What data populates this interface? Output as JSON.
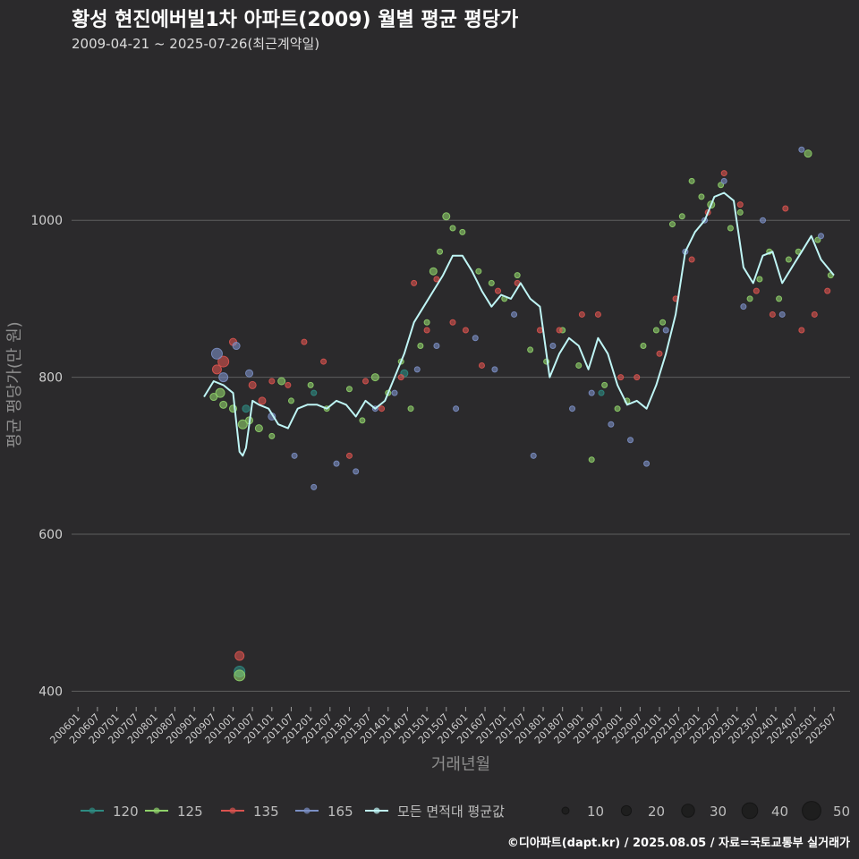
{
  "header": {
    "title": "황성 현진에버빌1차 아파트(2009) 월별 평균 평당가",
    "subtitle": "2009-04-21 ~ 2025-07-26(최근계약일)"
  },
  "caption": "©디아파트(dapt.kr) / 2025.08.05 / 자료=국토교통부 실거래가",
  "colors": {
    "background": "#2b2a2c",
    "grid": "#5e5e5e",
    "s120": "#2e8b82",
    "s125": "#8fd16a",
    "s135": "#d9534f",
    "s165": "#7b8fc4",
    "avg": "#bff5f5"
  },
  "chart_data": {
    "type": "scatter",
    "xlabel": "거래년월",
    "ylabel": "평균 평당가(만 원)",
    "x_ticks": [
      "200601",
      "200607",
      "200701",
      "200707",
      "200801",
      "200807",
      "200901",
      "200907",
      "201001",
      "201007",
      "201101",
      "201107",
      "201201",
      "201207",
      "201301",
      "201307",
      "201401",
      "201407",
      "201501",
      "201507",
      "201601",
      "201607",
      "201701",
      "201707",
      "201801",
      "201807",
      "201901",
      "201907",
      "202001",
      "202007",
      "202101",
      "202107",
      "202201",
      "202207",
      "202301",
      "202307",
      "202401",
      "202407",
      "202501",
      "202507"
    ],
    "ylim": [
      380,
      1210
    ],
    "y_ticks": [
      400,
      600,
      800,
      1000
    ],
    "grid": true,
    "legend_position": "bottom",
    "legend": {
      "series_labels": [
        "120",
        "125",
        "135",
        "165",
        "모든 면적대 평균값"
      ],
      "size_title": "",
      "size_values": [
        10,
        20,
        30,
        40,
        50
      ]
    },
    "avg_line": {
      "name": "모든 면적대 평균값",
      "x": [
        "2009-04",
        "2009-07",
        "2009-10",
        "2010-01",
        "2010-03",
        "2010-04",
        "2010-05",
        "2010-07",
        "2010-09",
        "2010-12",
        "2011-03",
        "2011-06",
        "2011-09",
        "2011-12",
        "2012-03",
        "2012-06",
        "2012-09",
        "2012-12",
        "2013-03",
        "2013-06",
        "2013-09",
        "2013-12",
        "2014-03",
        "2014-06",
        "2014-09",
        "2014-12",
        "2015-03",
        "2015-06",
        "2015-09",
        "2015-12",
        "2016-03",
        "2016-06",
        "2016-09",
        "2016-12",
        "2017-03",
        "2017-06",
        "2017-09",
        "2017-12",
        "2018-03",
        "2018-06",
        "2018-09",
        "2018-12",
        "2019-03",
        "2019-06",
        "2019-09",
        "2019-12",
        "2020-03",
        "2020-06",
        "2020-09",
        "2020-12",
        "2021-03",
        "2021-06",
        "2021-09",
        "2021-12",
        "2022-03",
        "2022-06",
        "2022-09",
        "2022-12",
        "2023-03",
        "2023-06",
        "2023-09",
        "2023-12",
        "2024-03",
        "2024-06",
        "2024-09",
        "2024-12",
        "2025-03",
        "2025-07"
      ],
      "y": [
        775,
        795,
        790,
        780,
        705,
        700,
        710,
        770,
        765,
        760,
        740,
        735,
        760,
        765,
        765,
        760,
        770,
        765,
        750,
        770,
        760,
        770,
        800,
        830,
        870,
        890,
        910,
        930,
        955,
        955,
        935,
        910,
        890,
        905,
        900,
        920,
        900,
        890,
        800,
        830,
        850,
        840,
        810,
        850,
        830,
        790,
        765,
        770,
        760,
        790,
        830,
        880,
        960,
        985,
        1000,
        1030,
        1035,
        1025,
        940,
        920,
        955,
        960,
        920,
        940,
        960,
        980,
        950,
        930
      ]
    },
    "scatter_series": [
      {
        "name": "120",
        "color": "#2e8b82",
        "x": [
          "2010-03",
          "2010-05",
          "2012-02",
          "2014-06",
          "2019-07"
        ],
        "y": [
          425,
          760,
          780,
          805,
          780
        ],
        "size": [
          6,
          4,
          3,
          4,
          3
        ]
      },
      {
        "name": "125",
        "color": "#8fd16a",
        "x": [
          "2009-07",
          "2009-09",
          "2009-10",
          "2010-01",
          "2010-03",
          "2010-04",
          "2010-06",
          "2010-09",
          "2011-01",
          "2011-04",
          "2011-07",
          "2012-01",
          "2012-06",
          "2013-01",
          "2013-05",
          "2013-09",
          "2014-01",
          "2014-05",
          "2014-08",
          "2014-11",
          "2015-01",
          "2015-03",
          "2015-05",
          "2015-07",
          "2015-09",
          "2015-12",
          "2016-05",
          "2016-09",
          "2017-01",
          "2017-05",
          "2017-09",
          "2018-02",
          "2018-07",
          "2018-12",
          "2019-04",
          "2019-08",
          "2019-12",
          "2020-03",
          "2020-08",
          "2020-12",
          "2021-02",
          "2021-05",
          "2021-08",
          "2021-11",
          "2022-02",
          "2022-05",
          "2022-08",
          "2022-11",
          "2023-02",
          "2023-05",
          "2023-08",
          "2023-11",
          "2024-02",
          "2024-05",
          "2024-08",
          "2024-11",
          "2025-02",
          "2025-06"
        ],
        "y": [
          775,
          780,
          765,
          760,
          420,
          740,
          745,
          735,
          725,
          795,
          770,
          790,
          760,
          785,
          745,
          800,
          780,
          820,
          760,
          840,
          870,
          935,
          960,
          1005,
          990,
          985,
          935,
          920,
          900,
          930,
          835,
          820,
          860,
          815,
          695,
          790,
          760,
          770,
          840,
          860,
          870,
          995,
          1005,
          1050,
          1030,
          1020,
          1045,
          990,
          1010,
          900,
          925,
          960,
          900,
          950,
          960,
          1085,
          975,
          930
        ],
        "size": [
          4,
          5,
          4,
          4,
          6,
          5,
          4,
          4,
          3,
          4,
          3,
          3,
          3,
          3,
          3,
          4,
          3,
          3,
          3,
          3,
          3,
          4,
          3,
          4,
          3,
          3,
          3,
          3,
          3,
          3,
          3,
          3,
          3,
          3,
          3,
          3,
          3,
          3,
          3,
          3,
          3,
          3,
          3,
          3,
          3,
          4,
          3,
          3,
          3,
          3,
          3,
          3,
          3,
          3,
          3,
          4,
          3,
          3
        ]
      },
      {
        "name": "135",
        "color": "#d9534f",
        "x": [
          "2009-08",
          "2009-10",
          "2010-01",
          "2010-03",
          "2010-07",
          "2010-10",
          "2011-01",
          "2011-06",
          "2011-11",
          "2012-05",
          "2013-01",
          "2013-06",
          "2013-11",
          "2014-05",
          "2014-09",
          "2015-01",
          "2015-04",
          "2015-09",
          "2016-01",
          "2016-06",
          "2016-11",
          "2017-05",
          "2017-12",
          "2018-06",
          "2019-01",
          "2019-06",
          "2020-01",
          "2020-06",
          "2021-01",
          "2021-06",
          "2021-11",
          "2022-04",
          "2022-09",
          "2023-02",
          "2023-07",
          "2023-12",
          "2024-04",
          "2024-09",
          "2025-01",
          "2025-05"
        ],
        "y": [
          810,
          820,
          845,
          445,
          790,
          770,
          795,
          790,
          845,
          820,
          700,
          795,
          760,
          800,
          920,
          860,
          925,
          870,
          860,
          815,
          910,
          920,
          860,
          860,
          880,
          880,
          800,
          800,
          830,
          900,
          950,
          1010,
          1060,
          1020,
          910,
          880,
          1015,
          860,
          880,
          910
        ],
        "size": [
          5,
          6,
          4,
          5,
          4,
          4,
          3,
          3,
          3,
          3,
          3,
          3,
          3,
          3,
          3,
          3,
          3,
          3,
          3,
          3,
          3,
          3,
          3,
          3,
          3,
          3,
          3,
          3,
          3,
          3,
          3,
          3,
          3,
          3,
          3,
          3,
          3,
          3,
          3,
          3
        ]
      },
      {
        "name": "165",
        "color": "#7b8fc4",
        "x": [
          "2009-08",
          "2009-10",
          "2010-02",
          "2010-06",
          "2011-01",
          "2011-08",
          "2012-02",
          "2012-09",
          "2013-03",
          "2013-09",
          "2014-03",
          "2014-10",
          "2015-04",
          "2015-10",
          "2016-04",
          "2016-10",
          "2017-04",
          "2017-10",
          "2018-04",
          "2018-10",
          "2019-04",
          "2019-10",
          "2020-04",
          "2020-09",
          "2021-03",
          "2021-09",
          "2022-03",
          "2022-09",
          "2023-03",
          "2023-09",
          "2024-03",
          "2024-09",
          "2025-03"
        ],
        "y": [
          830,
          800,
          840,
          805,
          750,
          700,
          660,
          690,
          680,
          760,
          780,
          810,
          840,
          760,
          850,
          810,
          880,
          700,
          840,
          760,
          780,
          740,
          720,
          690,
          860,
          960,
          1000,
          1050,
          890,
          1000,
          880,
          1090,
          980
        ],
        "size": [
          6,
          5,
          4,
          4,
          4,
          3,
          3,
          3,
          3,
          3,
          3,
          3,
          3,
          3,
          3,
          3,
          3,
          3,
          3,
          3,
          3,
          3,
          3,
          3,
          3,
          3,
          3,
          3,
          3,
          3,
          3,
          3,
          3
        ]
      }
    ]
  }
}
